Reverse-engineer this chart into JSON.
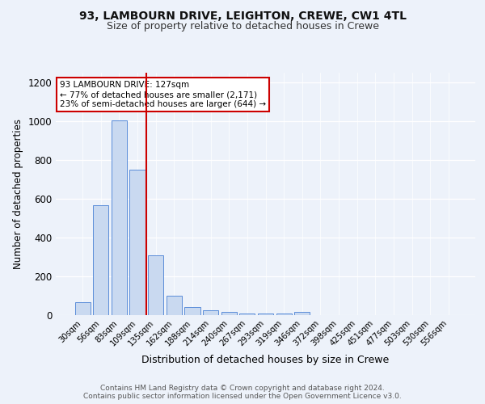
{
  "title1": "93, LAMBOURN DRIVE, LEIGHTON, CREWE, CW1 4TL",
  "title2": "Size of property relative to detached houses in Crewe",
  "xlabel": "Distribution of detached houses by size in Crewe",
  "ylabel": "Number of detached properties",
  "bar_labels": [
    "30sqm",
    "56sqm",
    "83sqm",
    "109sqm",
    "135sqm",
    "162sqm",
    "188sqm",
    "214sqm",
    "240sqm",
    "267sqm",
    "293sqm",
    "319sqm",
    "346sqm",
    "372sqm",
    "398sqm",
    "425sqm",
    "451sqm",
    "477sqm",
    "503sqm",
    "530sqm",
    "556sqm"
  ],
  "bar_values": [
    65,
    565,
    1005,
    750,
    310,
    100,
    40,
    25,
    15,
    8,
    8,
    8,
    15,
    0,
    0,
    0,
    0,
    0,
    0,
    0,
    0
  ],
  "bar_color": "#c9d9f0",
  "bar_edge_color": "#5b8dd9",
  "vline_color": "#cc0000",
  "annotation_text": "93 LAMBOURN DRIVE: 127sqm\n← 77% of detached houses are smaller (2,171)\n23% of semi-detached houses are larger (644) →",
  "annotation_box_color": "white",
  "annotation_box_edge": "#cc0000",
  "ylim": [
    0,
    1250
  ],
  "yticks": [
    0,
    200,
    400,
    600,
    800,
    1000,
    1200
  ],
  "footer_text": "Contains HM Land Registry data © Crown copyright and database right 2024.\nContains public sector information licensed under the Open Government Licence v3.0.",
  "background_color": "#edf2fa",
  "plot_background_color": "#edf2fa",
  "title1_fontsize": 10,
  "title2_fontsize": 9
}
